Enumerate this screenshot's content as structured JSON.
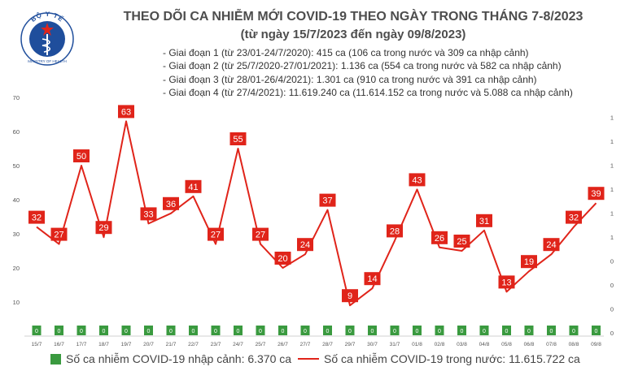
{
  "logo": {
    "arc_text": "BỘ Y TẾ",
    "bottom_text": "MINISTRY OF HEALTH"
  },
  "header": {
    "title": "THEO DÕI CA NHIỄM MỚI COVID-19 THEO NGÀY TRONG THÁNG 7-8/2023",
    "subtitle": "(từ ngày 15/7/2023 đến ngày 09/8/2023)"
  },
  "phases": [
    "- Giai đoạn 1 (từ 23/01-24/7/2020): 415 ca (106 ca trong nước và 309 ca nhập cảnh)",
    "- Giai đoạn 2 (từ 25/7/2020-27/01/2021): 1.136 ca (554 ca trong nước và 582 ca nhập cảnh)",
    "- Giai đoạn 3 (từ 28/01-26/4/2021): 1.301 ca (910 ca trong nước và 391 ca nhập cảnh)",
    "- Giai đoạn 4 (từ 27/4/2021): 11.619.240 ca (11.614.152 ca trong nước và 5.088 ca nhập cảnh)"
  ],
  "chart_data": {
    "type": "bar",
    "categories": [
      "15/7",
      "16/7",
      "17/7",
      "18/7",
      "19/7",
      "20/7",
      "21/7",
      "22/7",
      "23/7",
      "24/7",
      "25/7",
      "26/7",
      "27/7",
      "28/7",
      "29/7",
      "30/7",
      "31/7",
      "01/8",
      "02/8",
      "03/8",
      "04/8",
      "05/8",
      "06/8",
      "07/8",
      "08/8",
      "09/8"
    ],
    "ylim": [
      0,
      70
    ],
    "y_ticks": [
      10,
      20,
      30,
      40,
      50,
      60,
      70
    ],
    "right_ticks": [
      "0",
      "0",
      "0",
      "0",
      "1",
      "1",
      "1",
      "1",
      "1",
      "1"
    ],
    "series": [
      {
        "name": "Số ca nhiễm COVID-19 nhập cảnh: 6.370 ca",
        "type": "bar",
        "color": "#3a9a3f",
        "values": [
          0,
          0,
          0,
          0,
          0,
          0,
          0,
          0,
          0,
          0,
          0,
          0,
          0,
          0,
          0,
          0,
          0,
          0,
          0,
          0,
          0,
          0,
          0,
          0,
          0,
          0
        ],
        "labels": [
          "0",
          "0",
          "0",
          "0",
          "0",
          "0",
          "0",
          "0",
          "0",
          "0",
          "0",
          "0",
          "0",
          "0",
          "0",
          "0",
          "0",
          "0",
          "0",
          "0",
          "0",
          "0",
          "0",
          "0",
          "0",
          "0"
        ]
      },
      {
        "name": "Số ca nhiễm COVID-19 trong nước: 11.615.722 ca",
        "type": "line",
        "color": "#e0241a",
        "values": [
          32,
          27,
          50,
          29,
          63,
          33,
          36,
          41,
          27,
          55,
          27,
          20,
          24,
          37,
          9,
          14,
          28,
          43,
          26,
          25,
          31,
          13,
          19,
          24,
          32,
          39
        ]
      }
    ],
    "grid": false,
    "legend": "bottom"
  },
  "legend": {
    "import_label": "Số ca nhiễm COVID-19 nhập cảnh: 6.370 ca",
    "domestic_label": "Số ca nhiễm COVID-19 trong nước: 11.615.722 ca"
  }
}
